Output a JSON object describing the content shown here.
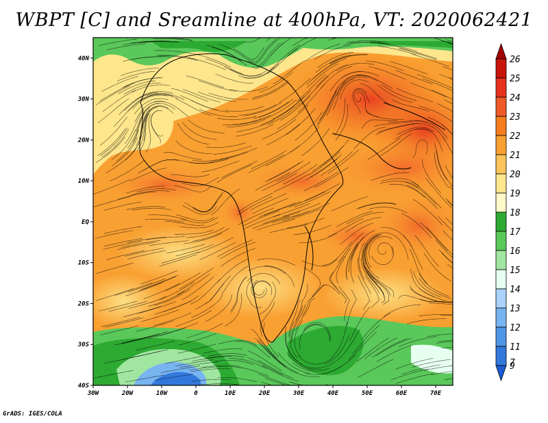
{
  "title": "WBPT [C] and Sreamline at 400hPa, VT: 2020062421",
  "footer": "GrADS: IGES/COLA",
  "map": {
    "lon_range": [
      -30,
      75
    ],
    "lat_range": [
      -40,
      45
    ],
    "lat_ticks": [
      {
        "value": 40,
        "label": "40N"
      },
      {
        "value": 30,
        "label": "30N"
      },
      {
        "value": 20,
        "label": "20N"
      },
      {
        "value": 10,
        "label": "10N"
      },
      {
        "value": 0,
        "label": "EQ"
      },
      {
        "value": -10,
        "label": "10S"
      },
      {
        "value": -20,
        "label": "20S"
      },
      {
        "value": -30,
        "label": "30S"
      },
      {
        "value": -40,
        "label": "40S"
      }
    ],
    "lon_ticks": [
      {
        "value": -30,
        "label": "30W"
      },
      {
        "value": -20,
        "label": "20W"
      },
      {
        "value": -10,
        "label": "10W"
      },
      {
        "value": 0,
        "label": "0"
      },
      {
        "value": 10,
        "label": "10E"
      },
      {
        "value": 20,
        "label": "20E"
      },
      {
        "value": 30,
        "label": "30E"
      },
      {
        "value": 40,
        "label": "40E"
      },
      {
        "value": 50,
        "label": "50E"
      },
      {
        "value": 60,
        "label": "60E"
      },
      {
        "value": 70,
        "label": "70E"
      }
    ]
  },
  "colorbar": {
    "levels": [
      {
        "label": "26",
        "color": "#a50000"
      },
      {
        "label": "25",
        "color": "#c8140a"
      },
      {
        "label": "24",
        "color": "#e6321e"
      },
      {
        "label": "23",
        "color": "#f05a28"
      },
      {
        "label": "22",
        "color": "#f57d1e"
      },
      {
        "label": "21",
        "color": "#f9a032"
      },
      {
        "label": "20",
        "color": "#fbc35a"
      },
      {
        "label": "19",
        "color": "#fde68c"
      },
      {
        "label": "18",
        "color": "#fff8c8"
      },
      {
        "label": "17",
        "color": "#2daa32"
      },
      {
        "label": "16",
        "color": "#5ac85a"
      },
      {
        "label": "15",
        "color": "#a0e6a0"
      },
      {
        "label": "14",
        "color": "#e6fff0"
      },
      {
        "label": "13",
        "color": "#aad2fa"
      },
      {
        "label": "12",
        "color": "#78b4f0"
      },
      {
        "label": "11",
        "color": "#5096e6"
      },
      {
        "label": "9",
        "color": "#3278dc"
      },
      {
        "label": "7",
        "color": "#1e5ad2"
      }
    ]
  }
}
